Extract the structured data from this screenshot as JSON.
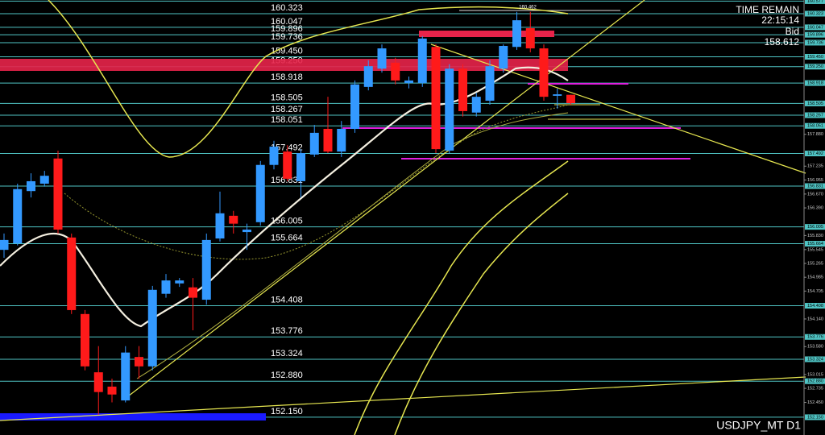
{
  "chart_data": {
    "type": "candlestick",
    "title": "USDJPY_MT D1",
    "time_remain_label": "TIME REMAIN",
    "time_remain": "22:15:14",
    "bid_label": "Bid",
    "bid": "158.612",
    "high_label": "160.462",
    "up_color": "#3399ff",
    "down_color": "#ff1a1a",
    "level_color": "#4fc4c4",
    "ylim": [
      151.79,
      160.6
    ],
    "yticks": [
      {
        "value": 157.88,
        "label": "157.880"
      },
      157.235,
      156.955,
      {
        "value": 156.67,
        "label": "156.670"
      },
      {
        "value": 156.39,
        "label": "156.390"
      },
      {
        "value": 155.83,
        "label": "155.830"
      },
      155.545,
      155.265,
      154.985,
      154.705,
      {
        "value": 154.14,
        "label": "154.140"
      },
      {
        "value": 153.58,
        "label": "153.580"
      },
      153.015,
      152.735,
      {
        "value": 152.45,
        "label": "152.450"
      }
    ],
    "levels": [
      160.577,
      160.323,
      160.047,
      159.896,
      159.736,
      {
        "value": 159.45,
        "label": "159.450"
      },
      {
        "value": 159.25,
        "label": "159.250"
      },
      158.918,
      158.505,
      158.267,
      158.051,
      157.492,
      156.831,
      156.005,
      155.664,
      154.408,
      153.776,
      153.324,
      {
        "value": 152.88,
        "label": "152.880"
      },
      {
        "value": 152.15,
        "label": "152.150"
      }
    ],
    "open": [
      155.54,
      155.67,
      156.73,
      156.88,
      157.39,
      155.79,
      154.24,
      153.06,
      152.77,
      152.49,
      153.37,
      153.18,
      154.65,
      154.86,
      154.78,
      154.53,
      155.77,
      156.23,
      155.9,
      156.1,
      157.26,
      157.53,
      156.93,
      157.47,
      157.99,
      157.53,
      157.99,
      158.84,
      159.21,
      159.33,
      158.92,
      158.92,
      159.65,
      157.55,
      159.21,
      158.32,
      158.56,
      159.21,
      159.65,
      160.03,
      159.62,
      158.66,
      158.68
    ],
    "high": [
      155.87,
      156.88,
      157.09,
      157.14,
      157.55,
      155.87,
      154.32,
      153.59,
      152.93,
      153.59,
      153.59,
      154.81,
      155.05,
      154.97,
      154.97,
      155.87,
      156.72,
      156.33,
      156.07,
      157.34,
      157.75,
      157.66,
      157.58,
      158.07,
      158.64,
      158.15,
      158.97,
      159.38,
      159.7,
      159.43,
      159.05,
      159.87,
      159.7,
      159.3,
      159.3,
      158.72,
      159.38,
      159.7,
      160.36,
      160.36,
      159.7,
      158.81,
      158.68
    ],
    "low": [
      155.38,
      155.63,
      156.6,
      156.82,
      155.87,
      154.24,
      153.1,
      152.2,
      152.45,
      152.45,
      152.93,
      153.1,
      154.57,
      154.79,
      153.91,
      154.43,
      155.71,
      155.87,
      155.54,
      156.03,
      157.17,
      156.93,
      156.6,
      157.42,
      157.5,
      157.42,
      157.91,
      158.77,
      159.13,
      158.89,
      158.81,
      158.84,
      157.5,
      157.5,
      158.24,
      158.24,
      158.48,
      159.13,
      159.59,
      159.54,
      158.56,
      158.4,
      158.48
    ],
    "close": [
      155.74,
      156.77,
      156.93,
      157.04,
      155.95,
      154.32,
      153.18,
      152.66,
      152.61,
      153.46,
      153.18,
      154.73,
      154.92,
      154.92,
      154.57,
      155.74,
      156.28,
      156.07,
      155.95,
      157.26,
      157.63,
      156.98,
      157.5,
      157.91,
      157.53,
      157.99,
      158.89,
      159.26,
      159.62,
      158.97,
      158.97,
      159.82,
      157.58,
      159.21,
      158.35,
      158.64,
      159.26,
      159.67,
      160.19,
      159.62,
      158.64,
      158.69,
      158.51
    ]
  }
}
